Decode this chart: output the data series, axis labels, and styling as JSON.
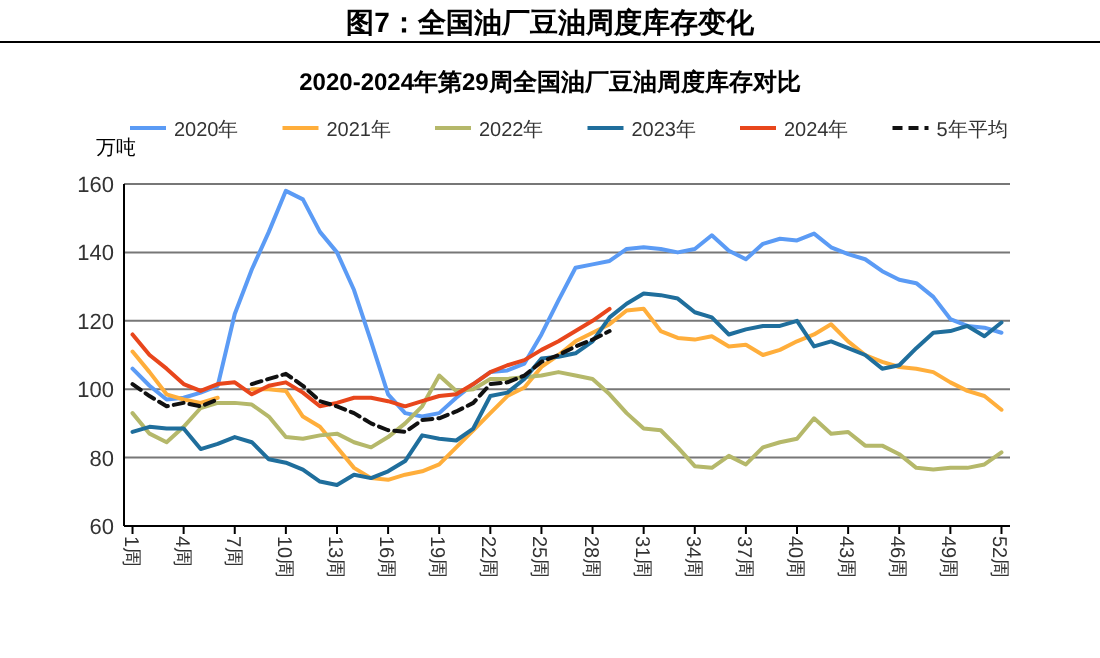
{
  "chart_data": {
    "type": "line",
    "title": "图7：全国油厂豆油周度库存变化",
    "subtitle": "2020-2024年第29周全国油厂豆油周度库存对比",
    "ylabel": "万吨",
    "categories": [
      "1周",
      null,
      null,
      "4周",
      null,
      null,
      "7周",
      null,
      null,
      "10周",
      null,
      null,
      "13周",
      null,
      null,
      "16周",
      null,
      null,
      "19周",
      null,
      null,
      "22周",
      null,
      null,
      "25周",
      null,
      null,
      "28周",
      null,
      null,
      "31周",
      null,
      null,
      "34周",
      null,
      null,
      "37周",
      null,
      null,
      "40周",
      null,
      null,
      "43周",
      null,
      null,
      "46周",
      null,
      null,
      "49周",
      null,
      null,
      "52周"
    ],
    "ylim": [
      60,
      160
    ],
    "yticks": [
      60,
      80,
      100,
      120,
      140,
      160
    ],
    "grid": "y",
    "legend": "top",
    "line_style": "solid",
    "series": [
      {
        "name": "2020年",
        "color": "#5b9bf5",
        "values": [
          106,
          101,
          97,
          97.5,
          99,
          101,
          122,
          135,
          146,
          158,
          155.5,
          146,
          140,
          129,
          114,
          98.5,
          93,
          92,
          93,
          97.5,
          101.5,
          105,
          105.5,
          107.5,
          116,
          126,
          135.5,
          136.5,
          137.5,
          141,
          141.5,
          141,
          140,
          141,
          145,
          140.5,
          138,
          142.5,
          144,
          143.5,
          145.5,
          141.5,
          139.5,
          138,
          134.5,
          132,
          131,
          127,
          120.5,
          118.5,
          118,
          116.5
        ]
      },
      {
        "name": "2021年",
        "color": "#ffae3b",
        "values": [
          111,
          105,
          98.5,
          97,
          96,
          97.5,
          null,
          100,
          100,
          99.5,
          92,
          89,
          83,
          77,
          74,
          73.5,
          75,
          76,
          78,
          83,
          88,
          93,
          98,
          100.5,
          106.5,
          110,
          114,
          116.5,
          119,
          123,
          123.5,
          117,
          115,
          114.5,
          115.5,
          112.5,
          113,
          110,
          111.5,
          114,
          116,
          119,
          114,
          110,
          108,
          106.5,
          106,
          105,
          102,
          99.5,
          98,
          94
        ]
      },
      {
        "name": "2022年",
        "color": "#b5b86a",
        "values": [
          93,
          87,
          84.5,
          89,
          94.5,
          96,
          96,
          95.5,
          92,
          86,
          85.5,
          86.5,
          87,
          84.5,
          83,
          86,
          90,
          95,
          104,
          99.5,
          100,
          103,
          103,
          103.5,
          104,
          105,
          104,
          103,
          98.5,
          93,
          88.5,
          88,
          83,
          77.5,
          77,
          80.5,
          78,
          83,
          84.5,
          85.5,
          91.5,
          87,
          87.5,
          83.5,
          83.5,
          81,
          77,
          76.5,
          77,
          77,
          78,
          81.5
        ]
      },
      {
        "name": "2023年",
        "color": "#1f6e9c",
        "values": [
          87.5,
          89,
          88.5,
          88.5,
          82.5,
          84,
          86,
          84.5,
          79.5,
          78.5,
          76.5,
          73,
          72,
          75,
          74,
          76,
          79,
          86.5,
          85.5,
          85,
          88.5,
          98,
          99,
          103,
          109,
          109.5,
          110.5,
          114,
          121,
          125,
          128,
          127.5,
          126.5,
          122.5,
          121,
          116,
          117.5,
          118.5,
          118.5,
          120,
          112.5,
          114,
          112,
          110,
          106,
          107,
          112,
          116.5,
          117,
          118.5,
          115.5,
          119.5
        ]
      },
      {
        "name": "2024年",
        "color": "#e8461c",
        "values": [
          116,
          110,
          106,
          101.5,
          99.5,
          101.5,
          102,
          98.5,
          101,
          102,
          99,
          95,
          96,
          97.5,
          97.5,
          96.5,
          95,
          96.5,
          98,
          98.5,
          101.5,
          105,
          107,
          108.5,
          111.5,
          114,
          117,
          120,
          123.5,
          null,
          null,
          null,
          null,
          null,
          null,
          null,
          null,
          null,
          null,
          null,
          null,
          null,
          null,
          null,
          null,
          null,
          null,
          null,
          null,
          null,
          null,
          null
        ]
      },
      {
        "name": "5年平均",
        "color": "#111111",
        "line_style": "dashed",
        "values": [
          101.5,
          98,
          95,
          96,
          95,
          97,
          null,
          101.5,
          103,
          104.5,
          101,
          96.5,
          95,
          93,
          90,
          88,
          87.5,
          91,
          91.5,
          93.5,
          96,
          101.5,
          102,
          104,
          108,
          110,
          112.5,
          114.5,
          117,
          null,
          null,
          null,
          null,
          null,
          null,
          null,
          null,
          null,
          null,
          null,
          null,
          null,
          null,
          null,
          null,
          null,
          null,
          null,
          null,
          null,
          null,
          null
        ]
      }
    ]
  }
}
